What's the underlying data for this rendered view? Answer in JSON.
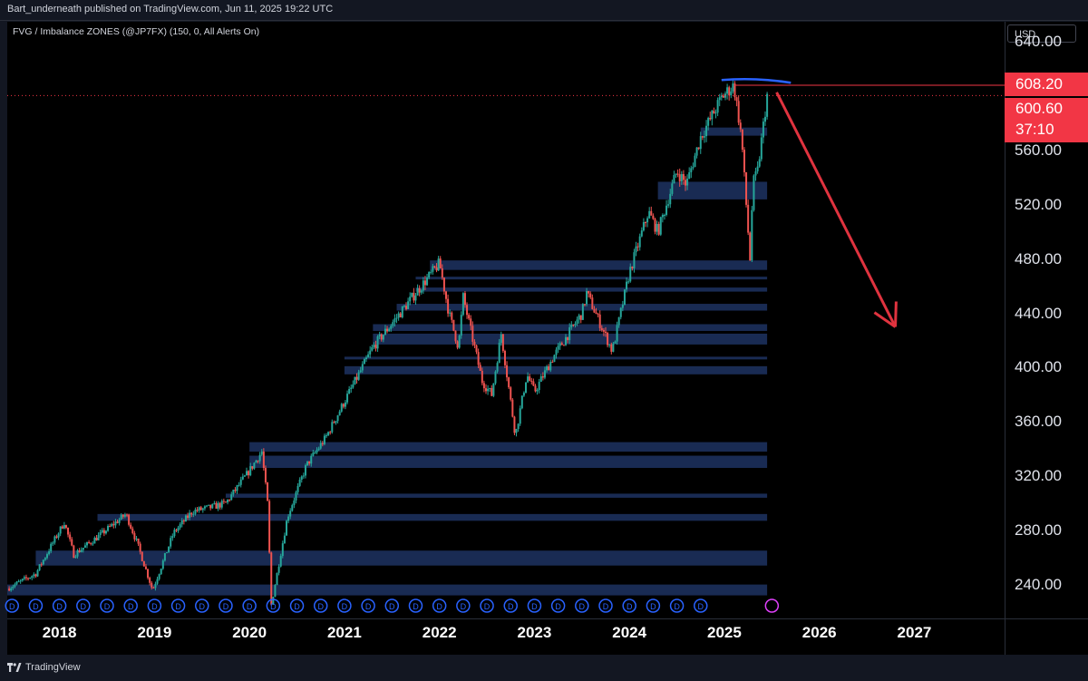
{
  "header": {
    "published_text": "Bart_underneath published on TradingView.com, Jun 11, 2025 19:22 UTC"
  },
  "indicator": {
    "label": "FVG / Imbalance ZONES (@JP7FX) (150, 0, All Alerts On)"
  },
  "currency": "USD",
  "footer": {
    "brand": "TradingView"
  },
  "price_labels": {
    "high": "608.20",
    "last": "600.60",
    "countdown": "37:10"
  },
  "colors": {
    "background": "#000000",
    "up": "#26a69a",
    "down": "#ef5350",
    "fvg_zone": "#1a2d57",
    "badge": "#f23645",
    "arc": "#2962ff",
    "arrow": "#e0333f",
    "dividend": "#2962ff"
  },
  "chart_data": {
    "type": "candlestick",
    "title": "",
    "y_ticks": [
      640,
      560,
      520,
      480,
      440,
      400,
      360,
      320,
      280,
      240
    ],
    "x_ticks": [
      "2018",
      "2019",
      "2020",
      "2021",
      "2022",
      "2023",
      "2024",
      "2025",
      "2026",
      "2027"
    ],
    "ylim": [
      215,
      655
    ],
    "xlim": [
      2017.45,
      2027.95
    ],
    "levels": {
      "high": 608.2,
      "last": 600.6
    },
    "price_path": [
      [
        2017.45,
        237
      ],
      [
        2017.75,
        248
      ],
      [
        2018.05,
        286
      ],
      [
        2018.15,
        262
      ],
      [
        2018.4,
        275
      ],
      [
        2018.7,
        292
      ],
      [
        2018.82,
        270
      ],
      [
        2018.98,
        236
      ],
      [
        2019.2,
        278
      ],
      [
        2019.4,
        294
      ],
      [
        2019.6,
        297
      ],
      [
        2019.75,
        300
      ],
      [
        2020.0,
        324
      ],
      [
        2020.13,
        338
      ],
      [
        2020.19,
        300
      ],
      [
        2020.23,
        225
      ],
      [
        2020.4,
        290
      ],
      [
        2020.6,
        328
      ],
      [
        2020.8,
        348
      ],
      [
        2021.0,
        375
      ],
      [
        2021.3,
        415
      ],
      [
        2021.55,
        437
      ],
      [
        2021.75,
        455
      ],
      [
        2021.9,
        468
      ],
      [
        2022.0,
        477
      ],
      [
        2022.1,
        440
      ],
      [
        2022.2,
        415
      ],
      [
        2022.25,
        452
      ],
      [
        2022.45,
        390
      ],
      [
        2022.55,
        380
      ],
      [
        2022.65,
        425
      ],
      [
        2022.78,
        360
      ],
      [
        2022.8,
        350
      ],
      [
        2022.92,
        395
      ],
      [
        2023.0,
        382
      ],
      [
        2023.2,
        408
      ],
      [
        2023.5,
        440
      ],
      [
        2023.55,
        455
      ],
      [
        2023.82,
        412
      ],
      [
        2024.0,
        470
      ],
      [
        2024.2,
        515
      ],
      [
        2024.3,
        500
      ],
      [
        2024.5,
        545
      ],
      [
        2024.6,
        535
      ],
      [
        2024.75,
        570
      ],
      [
        2024.98,
        600
      ],
      [
        2025.1,
        608.2
      ],
      [
        2025.18,
        570
      ],
      [
        2025.27,
        480
      ],
      [
        2025.3,
        535
      ],
      [
        2025.35,
        545
      ],
      [
        2025.45,
        600.6
      ]
    ],
    "fvg_zones": [
      [
        335,
        326
      ],
      [
        345,
        338
      ],
      [
        307,
        304
      ],
      [
        292,
        287
      ],
      [
        265,
        254
      ],
      [
        240,
        232
      ],
      [
        479,
        472
      ],
      [
        467,
        465
      ],
      [
        459,
        456
      ],
      [
        447,
        442
      ],
      [
        432,
        427
      ],
      [
        425,
        417
      ],
      [
        408,
        406
      ],
      [
        401,
        395
      ],
      [
        537,
        524
      ],
      [
        577,
        571
      ]
    ],
    "annotations": {
      "arc": {
        "from": [
          2024.97,
          612
        ],
        "to": [
          2025.7,
          610
        ],
        "peak": 632
      },
      "arrow": {
        "from": [
          2025.55,
          603
        ],
        "to": [
          2026.8,
          430
        ]
      }
    }
  }
}
